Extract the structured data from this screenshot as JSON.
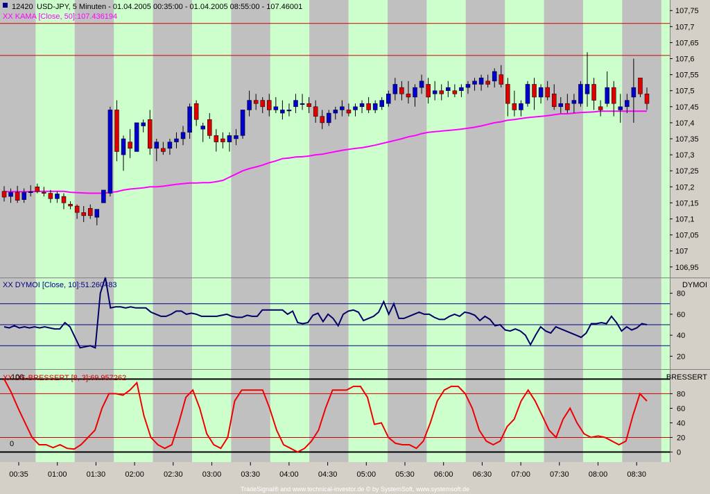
{
  "header": {
    "symbol_id": "12420",
    "title": "USD-JPY, 5 Minuten - 01.04.2005 00:35:00 - 01.04.2005 08:55:00 - 107.46001",
    "kama_label": "XX KAMA [Close, 50]:107.436194",
    "dymoi_label": "XX DYMOI [Close, 10]:51.260483",
    "dymoi_tab": "DYMOI",
    "stoch_label": "XX DS-BRESSERT [8, 3]:69.957262",
    "stoch_tab": "BRESSERT",
    "stoch_top_marker": "100",
    "stoch_zero_marker": "0"
  },
  "footer": {
    "credit": "TradeSignal® and www.technical-investor.de © by SystemSoft, www.systemsoft.de"
  },
  "colors": {
    "green_band": "#ccffcc",
    "gray_band": "#c0c0c0",
    "up_candle": "#0000cc",
    "down_candle": "#dd0000",
    "kama": "#ff00ff",
    "dymoi": "#000066",
    "stoch": "#ee0000",
    "hline": "#cc0000"
  },
  "chart_data": [
    {
      "type": "candlestick",
      "title": "USD-JPY, 5 Minuten",
      "y_ticks": [
        "107,75",
        "107,7",
        "107,65",
        "107,6",
        "107,55",
        "107,5",
        "107,45",
        "107,4",
        "107,35",
        "107,3",
        "107,25",
        "107,2",
        "107,15",
        "107,1",
        "107,05",
        "107",
        "106,95"
      ],
      "ylim": [
        106.93,
        107.77
      ],
      "hlines": [
        107.71,
        107.61
      ],
      "x_ticks": [
        "00:35",
        "01:00",
        "01:30",
        "02:00",
        "02:30",
        "03:00",
        "03:30",
        "04:00",
        "04:30",
        "05:00",
        "05:30",
        "06:00",
        "06:30",
        "07:00",
        "07:30",
        "08:00",
        "08:30"
      ],
      "candles": [
        [
          107.186,
          107.202,
          107.154,
          107.168
        ],
        [
          107.17,
          107.195,
          107.15,
          107.183
        ],
        [
          107.183,
          107.203,
          107.15,
          107.158
        ],
        [
          107.16,
          107.195,
          107.15,
          107.183
        ],
        [
          107.182,
          107.205,
          107.17,
          107.185
        ],
        [
          107.2,
          107.21,
          107.18,
          107.185
        ],
        [
          107.183,
          107.2,
          107.17,
          107.18
        ],
        [
          107.18,
          107.19,
          107.15,
          107.163
        ],
        [
          107.163,
          107.185,
          107.15,
          107.178
        ],
        [
          107.17,
          107.18,
          107.13,
          107.15
        ],
        [
          107.146,
          107.155,
          107.13,
          107.14
        ],
        [
          107.14,
          107.145,
          107.1,
          107.12
        ],
        [
          107.12,
          107.14,
          107.09,
          107.11
        ],
        [
          107.133,
          107.145,
          107.1,
          107.11
        ],
        [
          107.105,
          107.13,
          107.08,
          107.13
        ],
        [
          107.15,
          107.19,
          107.15,
          107.19
        ],
        [
          107.18,
          107.45,
          107.17,
          107.44
        ],
        [
          107.44,
          107.47,
          107.28,
          107.31
        ],
        [
          107.3,
          107.36,
          107.25,
          107.35
        ],
        [
          107.34,
          107.38,
          107.29,
          107.32
        ],
        [
          107.31,
          107.4,
          107.31,
          107.4
        ],
        [
          107.39,
          107.41,
          107.37,
          107.4
        ],
        [
          107.41,
          107.44,
          107.3,
          107.32
        ],
        [
          107.32,
          107.35,
          107.28,
          107.34
        ],
        [
          107.32,
          107.34,
          107.3,
          107.31
        ],
        [
          107.32,
          107.35,
          107.3,
          107.34
        ],
        [
          107.34,
          107.37,
          107.32,
          107.35
        ],
        [
          107.35,
          107.39,
          107.33,
          107.37
        ],
        [
          107.37,
          107.46,
          107.35,
          107.45
        ],
        [
          107.46,
          107.47,
          107.39,
          107.41
        ],
        [
          107.38,
          107.4,
          107.34,
          107.39
        ],
        [
          107.41,
          107.43,
          107.35,
          107.36
        ],
        [
          107.36,
          107.38,
          107.31,
          107.34
        ],
        [
          107.35,
          107.37,
          107.32,
          107.34
        ],
        [
          107.34,
          107.37,
          107.31,
          107.36
        ],
        [
          107.35,
          107.38,
          107.33,
          107.36
        ],
        [
          107.36,
          107.44,
          107.35,
          107.44
        ],
        [
          107.44,
          107.5,
          107.42,
          107.47
        ],
        [
          107.47,
          107.49,
          107.44,
          107.46
        ],
        [
          107.47,
          107.48,
          107.43,
          107.45
        ],
        [
          107.47,
          107.49,
          107.42,
          107.44
        ],
        [
          107.44,
          107.48,
          107.43,
          107.45
        ],
        [
          107.43,
          107.47,
          107.41,
          107.44
        ],
        [
          107.44,
          107.46,
          107.42,
          107.44
        ],
        [
          107.45,
          107.49,
          107.43,
          107.47
        ],
        [
          107.46,
          107.49,
          107.44,
          107.46
        ],
        [
          107.46,
          107.48,
          107.43,
          107.45
        ],
        [
          107.45,
          107.47,
          107.4,
          107.42
        ],
        [
          107.42,
          107.44,
          107.38,
          107.4
        ],
        [
          107.4,
          107.44,
          107.39,
          107.43
        ],
        [
          107.43,
          107.45,
          107.41,
          107.44
        ],
        [
          107.44,
          107.47,
          107.42,
          107.45
        ],
        [
          107.44,
          107.46,
          107.42,
          107.43
        ],
        [
          107.44,
          107.46,
          107.42,
          107.45
        ],
        [
          107.45,
          107.47,
          107.43,
          107.46
        ],
        [
          107.46,
          107.48,
          107.43,
          107.44
        ],
        [
          107.44,
          107.47,
          107.43,
          107.46
        ],
        [
          107.45,
          107.48,
          107.44,
          107.47
        ],
        [
          107.46,
          107.5,
          107.45,
          107.49
        ],
        [
          107.49,
          107.54,
          107.47,
          107.52
        ],
        [
          107.51,
          107.53,
          107.47,
          107.49
        ],
        [
          107.49,
          107.53,
          107.46,
          107.48
        ],
        [
          107.48,
          107.52,
          107.45,
          107.51
        ],
        [
          107.51,
          107.55,
          107.49,
          107.53
        ],
        [
          107.52,
          107.54,
          107.46,
          107.48
        ],
        [
          107.49,
          107.53,
          107.47,
          107.5
        ],
        [
          107.5,
          107.52,
          107.47,
          107.49
        ],
        [
          107.5,
          107.53,
          107.48,
          107.51
        ],
        [
          107.5,
          107.52,
          107.48,
          107.49
        ],
        [
          107.5,
          107.52,
          107.48,
          107.51
        ],
        [
          107.51,
          107.53,
          107.49,
          107.52
        ],
        [
          107.52,
          107.54,
          107.5,
          107.53
        ],
        [
          107.52,
          107.55,
          107.5,
          107.54
        ],
        [
          107.53,
          107.55,
          107.51,
          107.52
        ],
        [
          107.53,
          107.57,
          107.51,
          107.56
        ],
        [
          107.55,
          107.58,
          107.51,
          107.52
        ],
        [
          107.52,
          107.54,
          107.42,
          107.46
        ],
        [
          107.46,
          107.5,
          107.42,
          107.44
        ],
        [
          107.44,
          107.47,
          107.42,
          107.46
        ],
        [
          107.46,
          107.53,
          107.45,
          107.52
        ],
        [
          107.52,
          107.54,
          107.44,
          107.48
        ],
        [
          107.48,
          107.52,
          107.46,
          107.51
        ],
        [
          107.51,
          107.53,
          107.47,
          107.48
        ],
        [
          107.49,
          107.52,
          107.44,
          107.45
        ],
        [
          107.45,
          107.48,
          107.43,
          107.46
        ],
        [
          107.46,
          107.49,
          107.43,
          107.44
        ],
        [
          107.46,
          107.49,
          107.43,
          107.47
        ],
        [
          107.46,
          107.53,
          107.45,
          107.52
        ],
        [
          107.49,
          107.62,
          107.45,
          107.52
        ],
        [
          107.52,
          107.54,
          107.44,
          107.47
        ],
        [
          107.45,
          107.47,
          107.42,
          107.44
        ],
        [
          107.46,
          107.56,
          107.45,
          107.51
        ],
        [
          107.51,
          107.53,
          107.42,
          107.46
        ],
        [
          107.44,
          107.49,
          107.4,
          107.45
        ],
        [
          107.45,
          107.49,
          107.43,
          107.47
        ],
        [
          107.48,
          107.6,
          107.4,
          107.51
        ],
        [
          107.54,
          107.54,
          107.48,
          107.49
        ],
        [
          107.49,
          107.51,
          107.44,
          107.46
        ]
      ],
      "kama": [
        107.185,
        107.185,
        107.185,
        107.185,
        107.185,
        107.186,
        107.186,
        107.186,
        107.186,
        107.186,
        107.183,
        107.182,
        107.181,
        107.18,
        107.18,
        107.18,
        107.183,
        107.185,
        107.19,
        107.193,
        107.195,
        107.197,
        107.2,
        107.2,
        107.202,
        107.205,
        107.208,
        107.21,
        107.212,
        107.212,
        107.213,
        107.213,
        107.216,
        107.22,
        107.23,
        107.24,
        107.25,
        107.257,
        107.262,
        107.268,
        107.275,
        107.281,
        107.288,
        107.29,
        107.293,
        107.294,
        107.296,
        107.3,
        107.302,
        107.306,
        107.31,
        107.314,
        107.317,
        107.32,
        107.322,
        107.326,
        107.33,
        107.335,
        107.34,
        107.345,
        107.35,
        107.356,
        107.36,
        107.366,
        107.37,
        107.372,
        107.374,
        107.376,
        107.378,
        107.38,
        107.383,
        107.386,
        107.39,
        107.395,
        107.4,
        107.403,
        107.408,
        107.41,
        107.413,
        107.416,
        107.418,
        107.42,
        107.422,
        107.425,
        107.428,
        107.428,
        107.43,
        107.432,
        107.433,
        107.434,
        107.436,
        107.436,
        107.436,
        107.436,
        107.436,
        107.436,
        107.436,
        107.436
      ]
    },
    {
      "type": "line",
      "title": "DYMOI",
      "y_ticks": [
        "80",
        "60",
        "40",
        "20"
      ],
      "ylim": [
        11,
        91
      ],
      "hlines": [
        70,
        50,
        30
      ],
      "values": [
        48,
        47,
        49,
        47,
        48,
        47,
        48,
        47,
        48,
        47,
        46,
        46,
        52,
        48,
        38,
        28,
        29,
        30,
        28,
        80,
        95,
        66,
        67,
        67,
        66,
        67,
        66,
        66,
        66,
        62,
        60,
        58,
        58,
        60,
        63,
        63,
        60,
        61,
        60,
        58,
        58,
        58,
        58,
        59,
        60,
        58,
        57,
        57,
        59,
        58,
        58,
        64,
        64,
        64,
        64,
        64,
        60,
        63,
        52,
        51,
        52,
        59,
        61,
        53,
        60,
        56,
        49,
        60,
        63,
        64,
        62,
        54,
        56,
        58,
        62,
        72,
        60,
        70,
        56,
        56,
        58,
        60,
        62,
        60,
        60,
        57,
        55,
        55,
        58,
        60,
        58,
        62,
        61,
        59,
        54,
        58,
        55,
        49,
        50,
        45,
        44,
        46,
        44,
        40,
        31,
        40,
        48,
        44,
        42,
        48,
        46,
        44,
        42,
        40,
        38,
        42,
        51,
        51,
        52,
        51,
        58,
        52,
        44,
        48,
        45,
        47,
        51,
        50
      ]
    },
    {
      "type": "line",
      "title": "DS-BRESSERT",
      "y_ticks": [
        "80",
        "60",
        "40",
        "20",
        "0"
      ],
      "ylim": [
        -10,
        108
      ],
      "hlines": [
        100,
        80,
        20,
        0
      ],
      "values": [
        100,
        82,
        60,
        40,
        20,
        10,
        10,
        6,
        10,
        5,
        4,
        10,
        20,
        30,
        60,
        80,
        80,
        78,
        85,
        95,
        50,
        20,
        10,
        5,
        10,
        40,
        75,
        85,
        60,
        25,
        10,
        5,
        20,
        70,
        85,
        85,
        85,
        85,
        60,
        30,
        10,
        5,
        0,
        5,
        15,
        30,
        60,
        85,
        85,
        85,
        90,
        90,
        75,
        38,
        40,
        20,
        12,
        10,
        10,
        5,
        15,
        40,
        70,
        85,
        90,
        90,
        80,
        60,
        30,
        15,
        10,
        15,
        35,
        45,
        70,
        85,
        70,
        50,
        30,
        20,
        45,
        60,
        40,
        25,
        20,
        22,
        20,
        15,
        10,
        15,
        50,
        80,
        69.96
      ]
    }
  ]
}
